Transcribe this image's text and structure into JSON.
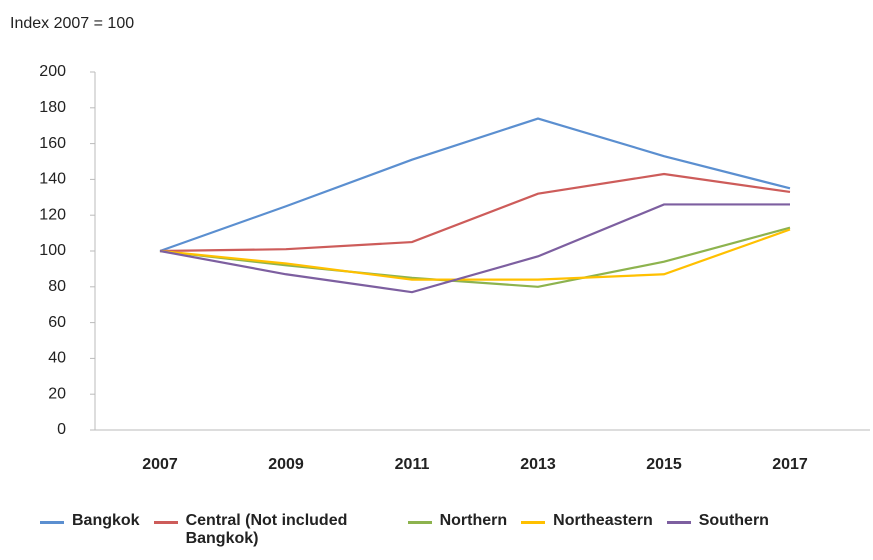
{
  "chart_data": {
    "type": "line",
    "title": "Index 2007 = 100",
    "categories": [
      "2007",
      "2009",
      "2011",
      "2013",
      "2015",
      "2017"
    ],
    "series": [
      {
        "name": "Bangkok",
        "color": "#5b8fd0",
        "values": [
          100,
          125,
          151,
          174,
          153,
          135
        ]
      },
      {
        "name": "Central (Not included Bangkok)",
        "color": "#cd5c5a",
        "values": [
          100,
          101,
          105,
          132,
          143,
          133
        ]
      },
      {
        "name": "Northern",
        "color": "#8db34e",
        "values": [
          100,
          92,
          85,
          80,
          94,
          113
        ]
      },
      {
        "name": "Northeastern",
        "color": "#ffc000",
        "values": [
          100,
          93,
          84,
          84,
          87,
          112
        ]
      },
      {
        "name": "Southern",
        "color": "#7d5fa0",
        "values": [
          100,
          87,
          77,
          97,
          126,
          126
        ]
      }
    ],
    "ylim": [
      0,
      200
    ],
    "yticks": [
      0,
      20,
      40,
      60,
      80,
      100,
      120,
      140,
      160,
      180,
      200
    ],
    "grid": false,
    "legend": "bottom"
  }
}
